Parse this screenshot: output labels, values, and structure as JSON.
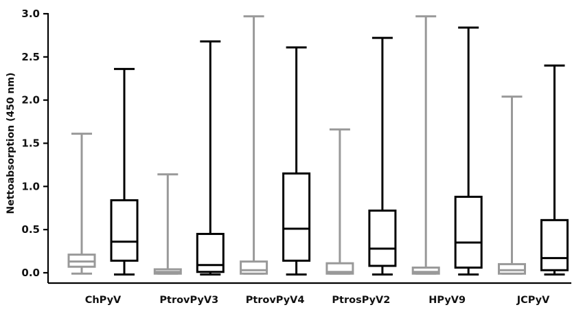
{
  "chart_data": {
    "type": "boxplot",
    "title": "",
    "xlabel": "",
    "ylabel": "Nettoabsorption (450 nm)",
    "ylim": [
      0,
      3.0
    ],
    "yticks": [
      "0.0",
      "0.5",
      "1.0",
      "1.5",
      "2.0",
      "2.5",
      "3.0"
    ],
    "grid": false,
    "legend": "none",
    "categories": [
      "ChPyV",
      "PtrovPyV3",
      "PtrovPyV4",
      "PtrosPyV2",
      "HPyV9",
      "JCPyV"
    ],
    "series": [
      {
        "color": "#999999",
        "boxes": [
          {
            "min": -0.01,
            "q1": 0.07,
            "median": 0.13,
            "q3": 0.21,
            "max": 1.61
          },
          {
            "min": -0.01,
            "q1": -0.01,
            "median": 0.01,
            "q3": 0.04,
            "max": 1.14
          },
          {
            "min": -0.01,
            "q1": -0.01,
            "median": 0.03,
            "q3": 0.13,
            "max": 2.97
          },
          {
            "min": -0.01,
            "q1": -0.01,
            "median": 0.01,
            "q3": 0.11,
            "max": 1.66
          },
          {
            "min": -0.01,
            "q1": -0.01,
            "median": 0.01,
            "q3": 0.06,
            "max": 2.97
          },
          {
            "min": -0.01,
            "q1": -0.01,
            "median": 0.03,
            "q3": 0.1,
            "max": 2.04
          }
        ]
      },
      {
        "color": "#000000",
        "boxes": [
          {
            "min": -0.02,
            "q1": 0.14,
            "median": 0.36,
            "q3": 0.84,
            "max": 2.36
          },
          {
            "min": -0.02,
            "q1": 0.01,
            "median": 0.09,
            "q3": 0.45,
            "max": 2.68
          },
          {
            "min": -0.02,
            "q1": 0.14,
            "median": 0.51,
            "q3": 1.15,
            "max": 2.61
          },
          {
            "min": -0.02,
            "q1": 0.08,
            "median": 0.28,
            "q3": 0.72,
            "max": 2.72
          },
          {
            "min": -0.02,
            "q1": 0.06,
            "median": 0.35,
            "q3": 0.88,
            "max": 2.84
          },
          {
            "min": -0.02,
            "q1": 0.03,
            "median": 0.17,
            "q3": 0.61,
            "max": 2.4
          }
        ]
      }
    ]
  }
}
